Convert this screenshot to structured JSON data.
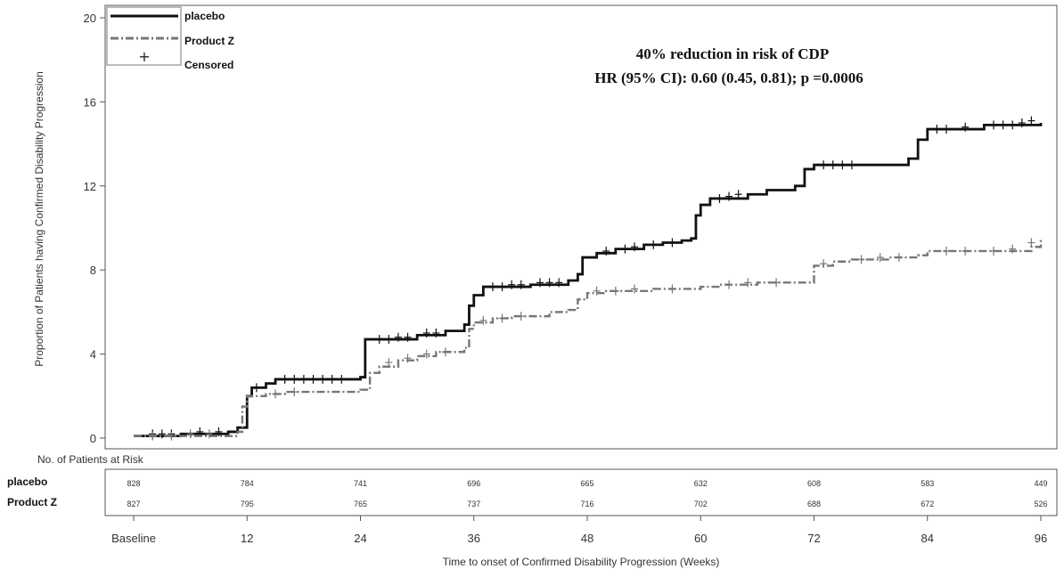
{
  "chart_data": {
    "type": "line",
    "title": "",
    "ylabel": "Proportion of Patients having Confirmed Disability Progression",
    "xlabel": "Time to onset of Confirmed Disability Progression (Weeks)",
    "xlim": [
      0,
      96
    ],
    "ylim": [
      0,
      20
    ],
    "yticks": [
      0,
      4,
      8,
      12,
      16,
      20
    ],
    "x_ticks": [
      0,
      12,
      24,
      36,
      48,
      60,
      72,
      84,
      96
    ],
    "x_tick_labels": [
      "Baseline",
      "12",
      "24",
      "36",
      "48",
      "60",
      "72",
      "84",
      "96"
    ],
    "grid": false,
    "legend_position": "top-left",
    "legend": {
      "entries": [
        "placebo",
        "Product Z",
        "Censored"
      ],
      "censored_symbol": "+"
    },
    "annotation": {
      "line1": "40% reduction in risk of CDP",
      "line2": "HR (95% CI): 0.60 (0.45, 0.81); p =0.0006"
    },
    "series": [
      {
        "name": "placebo",
        "style": "solid",
        "color": "#111111",
        "step_points": [
          [
            0,
            0.1
          ],
          [
            5,
            0.2
          ],
          [
            10,
            0.3
          ],
          [
            11,
            0.5
          ],
          [
            12,
            2.0
          ],
          [
            12.5,
            2.4
          ],
          [
            14,
            2.6
          ],
          [
            15,
            2.8
          ],
          [
            24,
            2.9
          ],
          [
            24.5,
            4.7
          ],
          [
            30,
            4.9
          ],
          [
            33,
            5.1
          ],
          [
            35,
            5.4
          ],
          [
            35.5,
            6.3
          ],
          [
            36,
            6.8
          ],
          [
            37,
            7.2
          ],
          [
            42,
            7.3
          ],
          [
            46,
            7.5
          ],
          [
            47,
            7.8
          ],
          [
            47.5,
            8.6
          ],
          [
            49,
            8.8
          ],
          [
            51,
            9.0
          ],
          [
            54,
            9.2
          ],
          [
            56,
            9.3
          ],
          [
            58,
            9.4
          ],
          [
            59,
            9.5
          ],
          [
            59.5,
            10.6
          ],
          [
            60,
            11.1
          ],
          [
            61,
            11.4
          ],
          [
            65,
            11.6
          ],
          [
            67,
            11.8
          ],
          [
            70,
            12.0
          ],
          [
            71,
            12.8
          ],
          [
            72,
            13.0
          ],
          [
            82,
            13.3
          ],
          [
            83,
            14.2
          ],
          [
            84,
            14.7
          ],
          [
            90,
            14.9
          ],
          [
            96,
            15.0
          ]
        ],
        "censored": [
          [
            2,
            0.2
          ],
          [
            3,
            0.2
          ],
          [
            4,
            0.2
          ],
          [
            7,
            0.3
          ],
          [
            9,
            0.3
          ],
          [
            13,
            2.4
          ],
          [
            16,
            2.8
          ],
          [
            17,
            2.8
          ],
          [
            18,
            2.8
          ],
          [
            19,
            2.8
          ],
          [
            20,
            2.8
          ],
          [
            21,
            2.8
          ],
          [
            22,
            2.8
          ],
          [
            26,
            4.7
          ],
          [
            27,
            4.7
          ],
          [
            28,
            4.8
          ],
          [
            29,
            4.8
          ],
          [
            31,
            5.0
          ],
          [
            32,
            5.0
          ],
          [
            38,
            7.2
          ],
          [
            39,
            7.2
          ],
          [
            40,
            7.3
          ],
          [
            41,
            7.3
          ],
          [
            43,
            7.4
          ],
          [
            44,
            7.4
          ],
          [
            45,
            7.4
          ],
          [
            50,
            8.9
          ],
          [
            52,
            9.0
          ],
          [
            53,
            9.1
          ],
          [
            55,
            9.2
          ],
          [
            57,
            9.3
          ],
          [
            62,
            11.4
          ],
          [
            63,
            11.5
          ],
          [
            64,
            11.6
          ],
          [
            73,
            13.0
          ],
          [
            74,
            13.0
          ],
          [
            75,
            13.0
          ],
          [
            76,
            13.0
          ],
          [
            85,
            14.7
          ],
          [
            86,
            14.7
          ],
          [
            88,
            14.8
          ],
          [
            91,
            14.9
          ],
          [
            92,
            14.9
          ],
          [
            93,
            14.9
          ],
          [
            94,
            15.0
          ],
          [
            95,
            15.1
          ]
        ]
      },
      {
        "name": "Product Z",
        "style": "dashdot",
        "color": "#777777",
        "step_points": [
          [
            0,
            0.1
          ],
          [
            11,
            0.3
          ],
          [
            11.5,
            1.5
          ],
          [
            12,
            2.0
          ],
          [
            14,
            2.1
          ],
          [
            16,
            2.2
          ],
          [
            18,
            2.2
          ],
          [
            24,
            2.3
          ],
          [
            25,
            3.1
          ],
          [
            26,
            3.4
          ],
          [
            28,
            3.7
          ],
          [
            30,
            3.9
          ],
          [
            32,
            4.1
          ],
          [
            35,
            4.3
          ],
          [
            35.5,
            5.2
          ],
          [
            36,
            5.5
          ],
          [
            38,
            5.7
          ],
          [
            40,
            5.8
          ],
          [
            44,
            6.0
          ],
          [
            46,
            6.1
          ],
          [
            47,
            6.6
          ],
          [
            48,
            6.9
          ],
          [
            50,
            7.0
          ],
          [
            55,
            7.1
          ],
          [
            60,
            7.2
          ],
          [
            62,
            7.3
          ],
          [
            66,
            7.4
          ],
          [
            71,
            7.4
          ],
          [
            72,
            8.2
          ],
          [
            74,
            8.4
          ],
          [
            76,
            8.5
          ],
          [
            80,
            8.6
          ],
          [
            83,
            8.7
          ],
          [
            84,
            8.9
          ],
          [
            90,
            8.9
          ],
          [
            95,
            9.1
          ],
          [
            96,
            9.5
          ]
        ],
        "censored": [
          [
            2,
            0.1
          ],
          [
            4,
            0.1
          ],
          [
            6,
            0.2
          ],
          [
            8,
            0.2
          ],
          [
            15,
            2.1
          ],
          [
            17,
            2.2
          ],
          [
            27,
            3.6
          ],
          [
            29,
            3.8
          ],
          [
            31,
            4.0
          ],
          [
            33,
            4.1
          ],
          [
            37,
            5.6
          ],
          [
            39,
            5.7
          ],
          [
            41,
            5.8
          ],
          [
            49,
            7.0
          ],
          [
            51,
            7.0
          ],
          [
            53,
            7.1
          ],
          [
            57,
            7.1
          ],
          [
            63,
            7.3
          ],
          [
            65,
            7.4
          ],
          [
            68,
            7.4
          ],
          [
            73,
            8.3
          ],
          [
            77,
            8.5
          ],
          [
            79,
            8.6
          ],
          [
            81,
            8.6
          ],
          [
            86,
            8.9
          ],
          [
            88,
            8.9
          ],
          [
            91,
            8.9
          ],
          [
            93,
            9.0
          ],
          [
            95,
            9.3
          ]
        ]
      }
    ],
    "risk_table": {
      "header": "No. of Patients at Risk",
      "rows": [
        {
          "name": "placebo",
          "values": [
            "828",
            "784",
            "741",
            "696",
            "665",
            "632",
            "608",
            "583",
            "449"
          ]
        },
        {
          "name": "Product Z",
          "values": [
            "827",
            "795",
            "765",
            "737",
            "716",
            "702",
            "688",
            "672",
            "526"
          ]
        }
      ]
    }
  }
}
